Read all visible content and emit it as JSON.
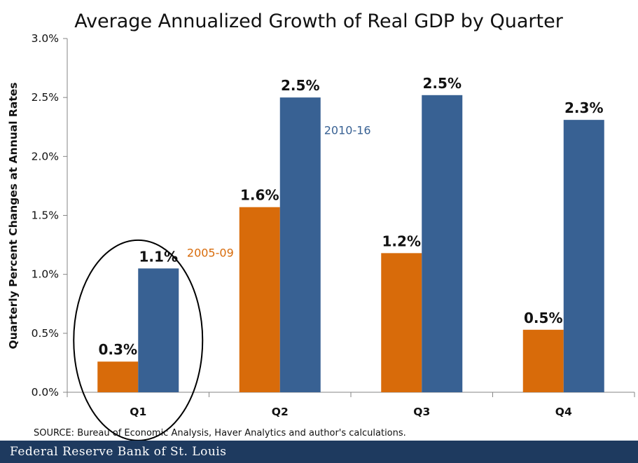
{
  "chart_data": {
    "type": "bar",
    "title": "Average Annualized Growth of Real GDP by Quarter",
    "ylabel": "Quarterly Percent Changes at Annual Rates",
    "xlabel": "",
    "categories": [
      "Q1",
      "Q2",
      "Q3",
      "Q4"
    ],
    "ylim": [
      0,
      3.0
    ],
    "yticks": [
      "0.0%",
      "0.5%",
      "1.0%",
      "1.5%",
      "2.0%",
      "2.5%",
      "3.0%"
    ],
    "series": [
      {
        "name": "2005-09",
        "color": "#d86b0a",
        "values": [
          0.26,
          1.57,
          1.18,
          0.53
        ],
        "labels": [
          "0.3%",
          "1.6%",
          "1.2%",
          "0.5%"
        ]
      },
      {
        "name": "2010-16",
        "color": "#386193",
        "values": [
          1.05,
          2.5,
          2.52,
          2.31
        ],
        "labels": [
          "1.1%",
          "2.5%",
          "2.5%",
          "2.3%"
        ]
      }
    ],
    "grid": false,
    "annotation": {
      "type": "ellipse",
      "target_category": "Q1"
    }
  },
  "source": "SOURCE: Bureau of Economic Analysis, Haver Analytics and author's calculations.",
  "footer": {
    "text": "Federal Reserve Bank of St. Louis",
    "background": "#1e3a5f"
  }
}
